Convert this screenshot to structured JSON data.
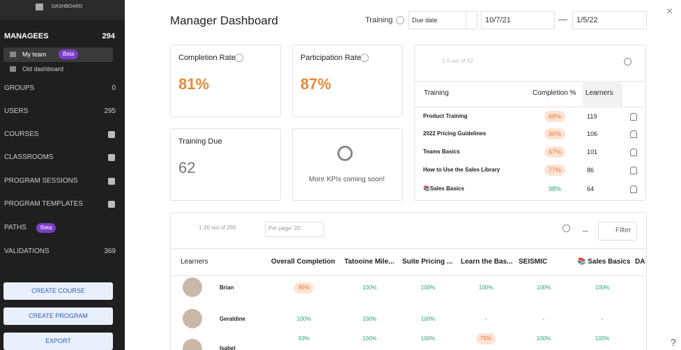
{
  "sidebar": {
    "header": "DASHBOARD",
    "managees": {
      "label": "MANAGEES",
      "count": 294
    },
    "sub": [
      {
        "label": "My team",
        "badge": "Beta"
      },
      {
        "label": "Old dashboard"
      }
    ],
    "nav": [
      {
        "label": "GROUPS",
        "count": 0
      },
      {
        "label": "USERS",
        "count": 295
      },
      {
        "label": "COURSES"
      },
      {
        "label": "CLASSROOMS"
      },
      {
        "label": "PROGRAM SESSIONS"
      },
      {
        "label": "PROGRAM TEMPLATES"
      },
      {
        "label": "PATHS",
        "badge": "Beta"
      },
      {
        "label": "VALIDATIONS",
        "count": 369
      }
    ],
    "buttons": [
      "CREATE COURSE",
      "CREATE PROGRAM",
      "EXPORT"
    ]
  },
  "header": {
    "title": "Manager Dashboard",
    "filter_label": "Training",
    "date_type": "Due date",
    "start_date": "10/7/21",
    "end_date": "1/5/22"
  },
  "kpis": [
    {
      "label": "Completion Rate",
      "value": "81%"
    },
    {
      "label": "Participation Rate",
      "value": "87%"
    },
    {
      "label": "Training Due",
      "value": 62
    }
  ],
  "coming_soon": "More KPIs coming soon!",
  "training_table": {
    "pagination": "1-5 out of 62",
    "columns": [
      "Training",
      "Completion %",
      "Learners"
    ],
    "rows": [
      [
        "Product Training",
        "68%",
        119
      ],
      [
        "2022 Pricing Guidelines",
        "90%",
        106
      ],
      [
        "Teams Basics",
        "67%",
        101
      ],
      [
        "How to Use the Sales Library",
        "77%",
        86
      ],
      [
        "📚Sales Basics",
        "98%",
        64
      ]
    ]
  },
  "learners_table": {
    "pagination": "1-20 out of 265",
    "per_page": "Per page: 20",
    "filter": "Filter",
    "columns": [
      "Learners",
      "Overall Completion",
      "Tatooine Mile...",
      "Suite Pricing ...",
      "Learn the Bas...",
      "SEISMIC",
      "📚 Sales Basics",
      "DA"
    ],
    "rows": [
      {
        "name": "Brian",
        "values": [
          "85%",
          "100%",
          "100%",
          "100%",
          "100%",
          "100%"
        ]
      },
      {
        "name": "Geraldine",
        "values": [
          "100%",
          "100%",
          "100%",
          "-",
          "-",
          "-"
        ]
      },
      {
        "name": "Isabel",
        "values": [
          "93%",
          "100%",
          "100%",
          "75%",
          "100%",
          "100%"
        ]
      }
    ]
  }
}
